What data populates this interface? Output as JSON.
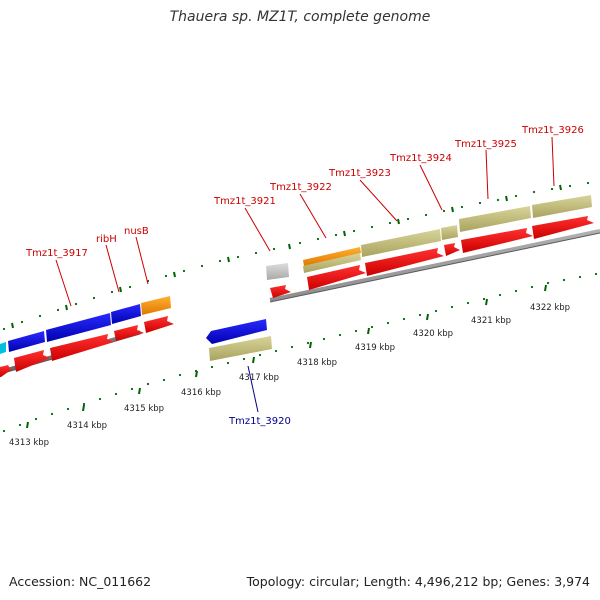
{
  "header": {
    "title": "Thauera sp. MZ1T, complete genome"
  },
  "footer": {
    "accession": "Accession: NC_011662",
    "summary": "Topology: circular; Length: 4,496,212 bp; Genes: 3,974"
  },
  "scale": {
    "unit": "kbp",
    "ticks": [
      "4313 kbp",
      "4314 kbp",
      "4315 kbp",
      "4316 kbp",
      "4317 kbp",
      "4318 kbp",
      "4319 kbp",
      "4320 kbp",
      "4321 kbp",
      "4322 kbp"
    ]
  },
  "genes": {
    "upper": [
      "Tmz1t_3917",
      "ribH",
      "nusB",
      "Tmz1t_3921",
      "Tmz1t_3922",
      "Tmz1t_3923",
      "Tmz1t_3924",
      "Tmz1t_3925",
      "Tmz1t_3926"
    ],
    "lower": [
      "Tmz1t_3920"
    ]
  },
  "colors": {
    "cds": "#ff0000",
    "blue_feature": "#1010e0",
    "orange_feature": "#ff9900",
    "khaki_feature": "#bdb76b",
    "grey_feature": "#c0c0c0",
    "tick": "#006400",
    "backbone": "#808080"
  }
}
